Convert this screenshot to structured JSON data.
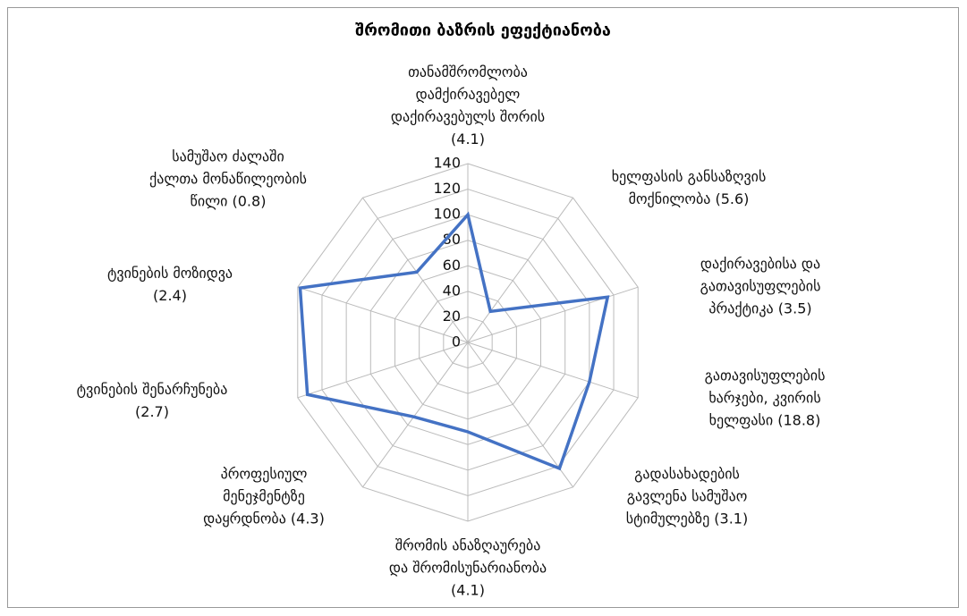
{
  "chart_data": {
    "type": "radar",
    "title": "შრომითი ბაზრის ეფექტიანობა",
    "categories": [
      "თანამშრომლობა\nდამქირავებელ\nდაქირავებულს შორის\n(4.1)",
      "ხელფასის განსაზღვის\nმოქნილობა  (5.6)",
      "დაქირავებისა და\nგათავისუფლების\nპრაქტიკა (3.5)",
      "გათავისუფლების\nხარჯები, კვირის\nხელფასი (18.8)",
      "გადასახადების\nგავლენა სამუშაო\nსტიმულებზე (3.1)",
      "შრომის ანაზღაურება\nდა შრომისუნარიანობა\n(4.1)",
      "პროფესიულ\nმენეჯმენტზე\nდაყრდნობა (4.3)",
      "ტვინების შენარჩუნება\n(2.7)",
      "ტვინების მოზიდვა\n(2.4)",
      "სამუშაო ძალაში\nქალთა მონაწილეობის\nწილი (0.8)"
    ],
    "values": [
      100,
      30,
      115,
      100,
      122,
      70,
      72,
      132,
      138,
      68
    ],
    "color": "#4472c4",
    "ylim": [
      0,
      140
    ],
    "yticks": [
      0,
      20,
      40,
      60,
      80,
      100,
      120,
      140
    ],
    "grid": true
  }
}
